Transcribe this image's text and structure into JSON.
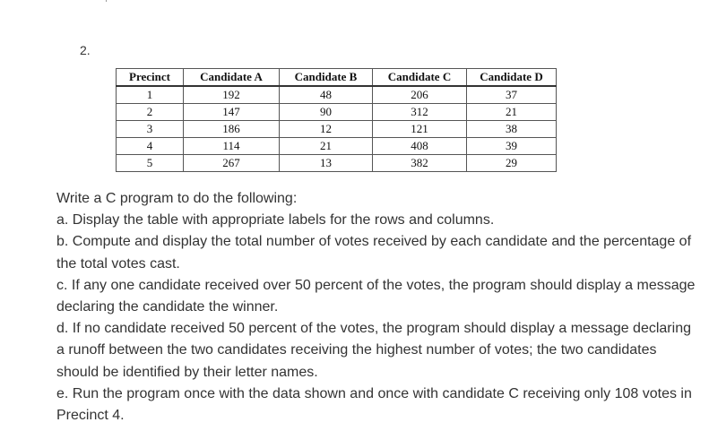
{
  "question": {
    "number": "2."
  },
  "table": {
    "headers": [
      "Precinct",
      "Candidate A",
      "Candidate B",
      "Candidate C",
      "Candidate D"
    ],
    "rows": [
      [
        "1",
        "192",
        "48",
        "206",
        "37"
      ],
      [
        "2",
        "147",
        "90",
        "312",
        "21"
      ],
      [
        "3",
        "186",
        "12",
        "121",
        "38"
      ],
      [
        "4",
        "114",
        "21",
        "408",
        "39"
      ],
      [
        "5",
        "267",
        "13",
        "382",
        "29"
      ]
    ]
  },
  "instructions": {
    "intro": "Write a C program to do the following:",
    "item_a": "a. Display the table with appropriate labels for the rows and columns.",
    "item_b": "b. Compute and display the total number of votes received by each candidate and the percentage of the total votes cast.",
    "item_c": "c. If any one candidate received over 50 percent of the votes, the program should display a message declaring the candidate the winner.",
    "item_d": "d. If no candidate received 50 percent of the votes, the program should display a message declaring a runoff between the two candidates receiving the highest number of votes; the two candidates should be identified by their letter names.",
    "item_e": "e. Run the program once with the data shown and once with candidate C receiving only 108 votes in Precinct 4."
  }
}
